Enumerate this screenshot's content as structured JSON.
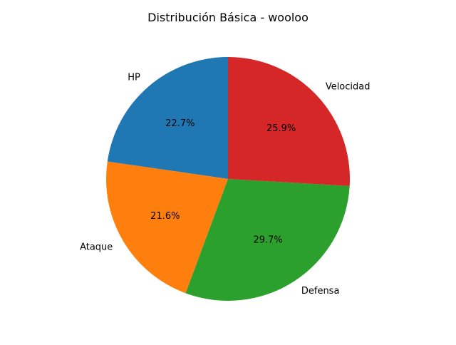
{
  "chart_data": {
    "type": "pie",
    "title": "Distribución Básica - wooloo",
    "start_angle_deg": 90,
    "direction": "counterclockwise",
    "slices": [
      {
        "label": "HP",
        "value": 22.7,
        "pct_label": "22.7%",
        "color": "#1f77b4"
      },
      {
        "label": "Ataque",
        "value": 21.6,
        "pct_label": "21.6%",
        "color": "#ff7f0e"
      },
      {
        "label": "Defensa",
        "value": 29.7,
        "pct_label": "29.7%",
        "color": "#2ca02c"
      },
      {
        "label": "Velocidad",
        "value": 25.9,
        "pct_label": "25.9%",
        "color": "#d62728"
      }
    ]
  }
}
